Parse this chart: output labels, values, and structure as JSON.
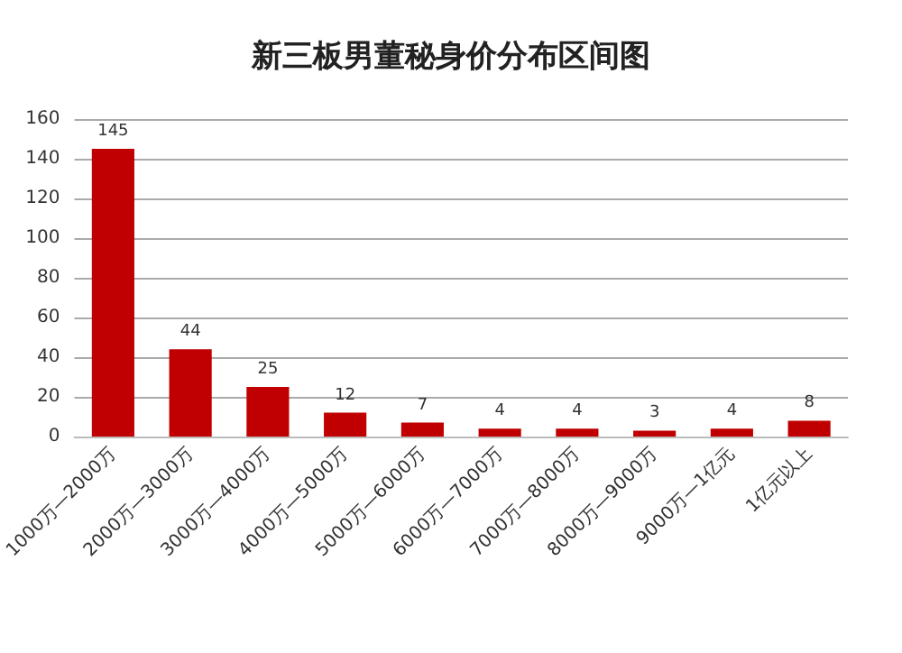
{
  "chart_data": {
    "type": "bar",
    "title": "新三板男董秘身价分布区间图",
    "categories": [
      "1000万—2000万",
      "2000万—3000万",
      "3000万—4000万",
      "4000万—5000万",
      "5000万—6000万",
      "6000万—7000万",
      "7000万—8000万",
      "8000万—9000万",
      "9000万—1亿元",
      "1亿元以上"
    ],
    "values": [
      145,
      44,
      25,
      12,
      7,
      4,
      4,
      3,
      4,
      8
    ],
    "color": "#c00000",
    "ylim": [
      0,
      160
    ],
    "yticks": [
      0,
      20,
      40,
      60,
      80,
      100,
      120,
      140,
      160
    ],
    "grid": "y",
    "data_labels": true
  }
}
